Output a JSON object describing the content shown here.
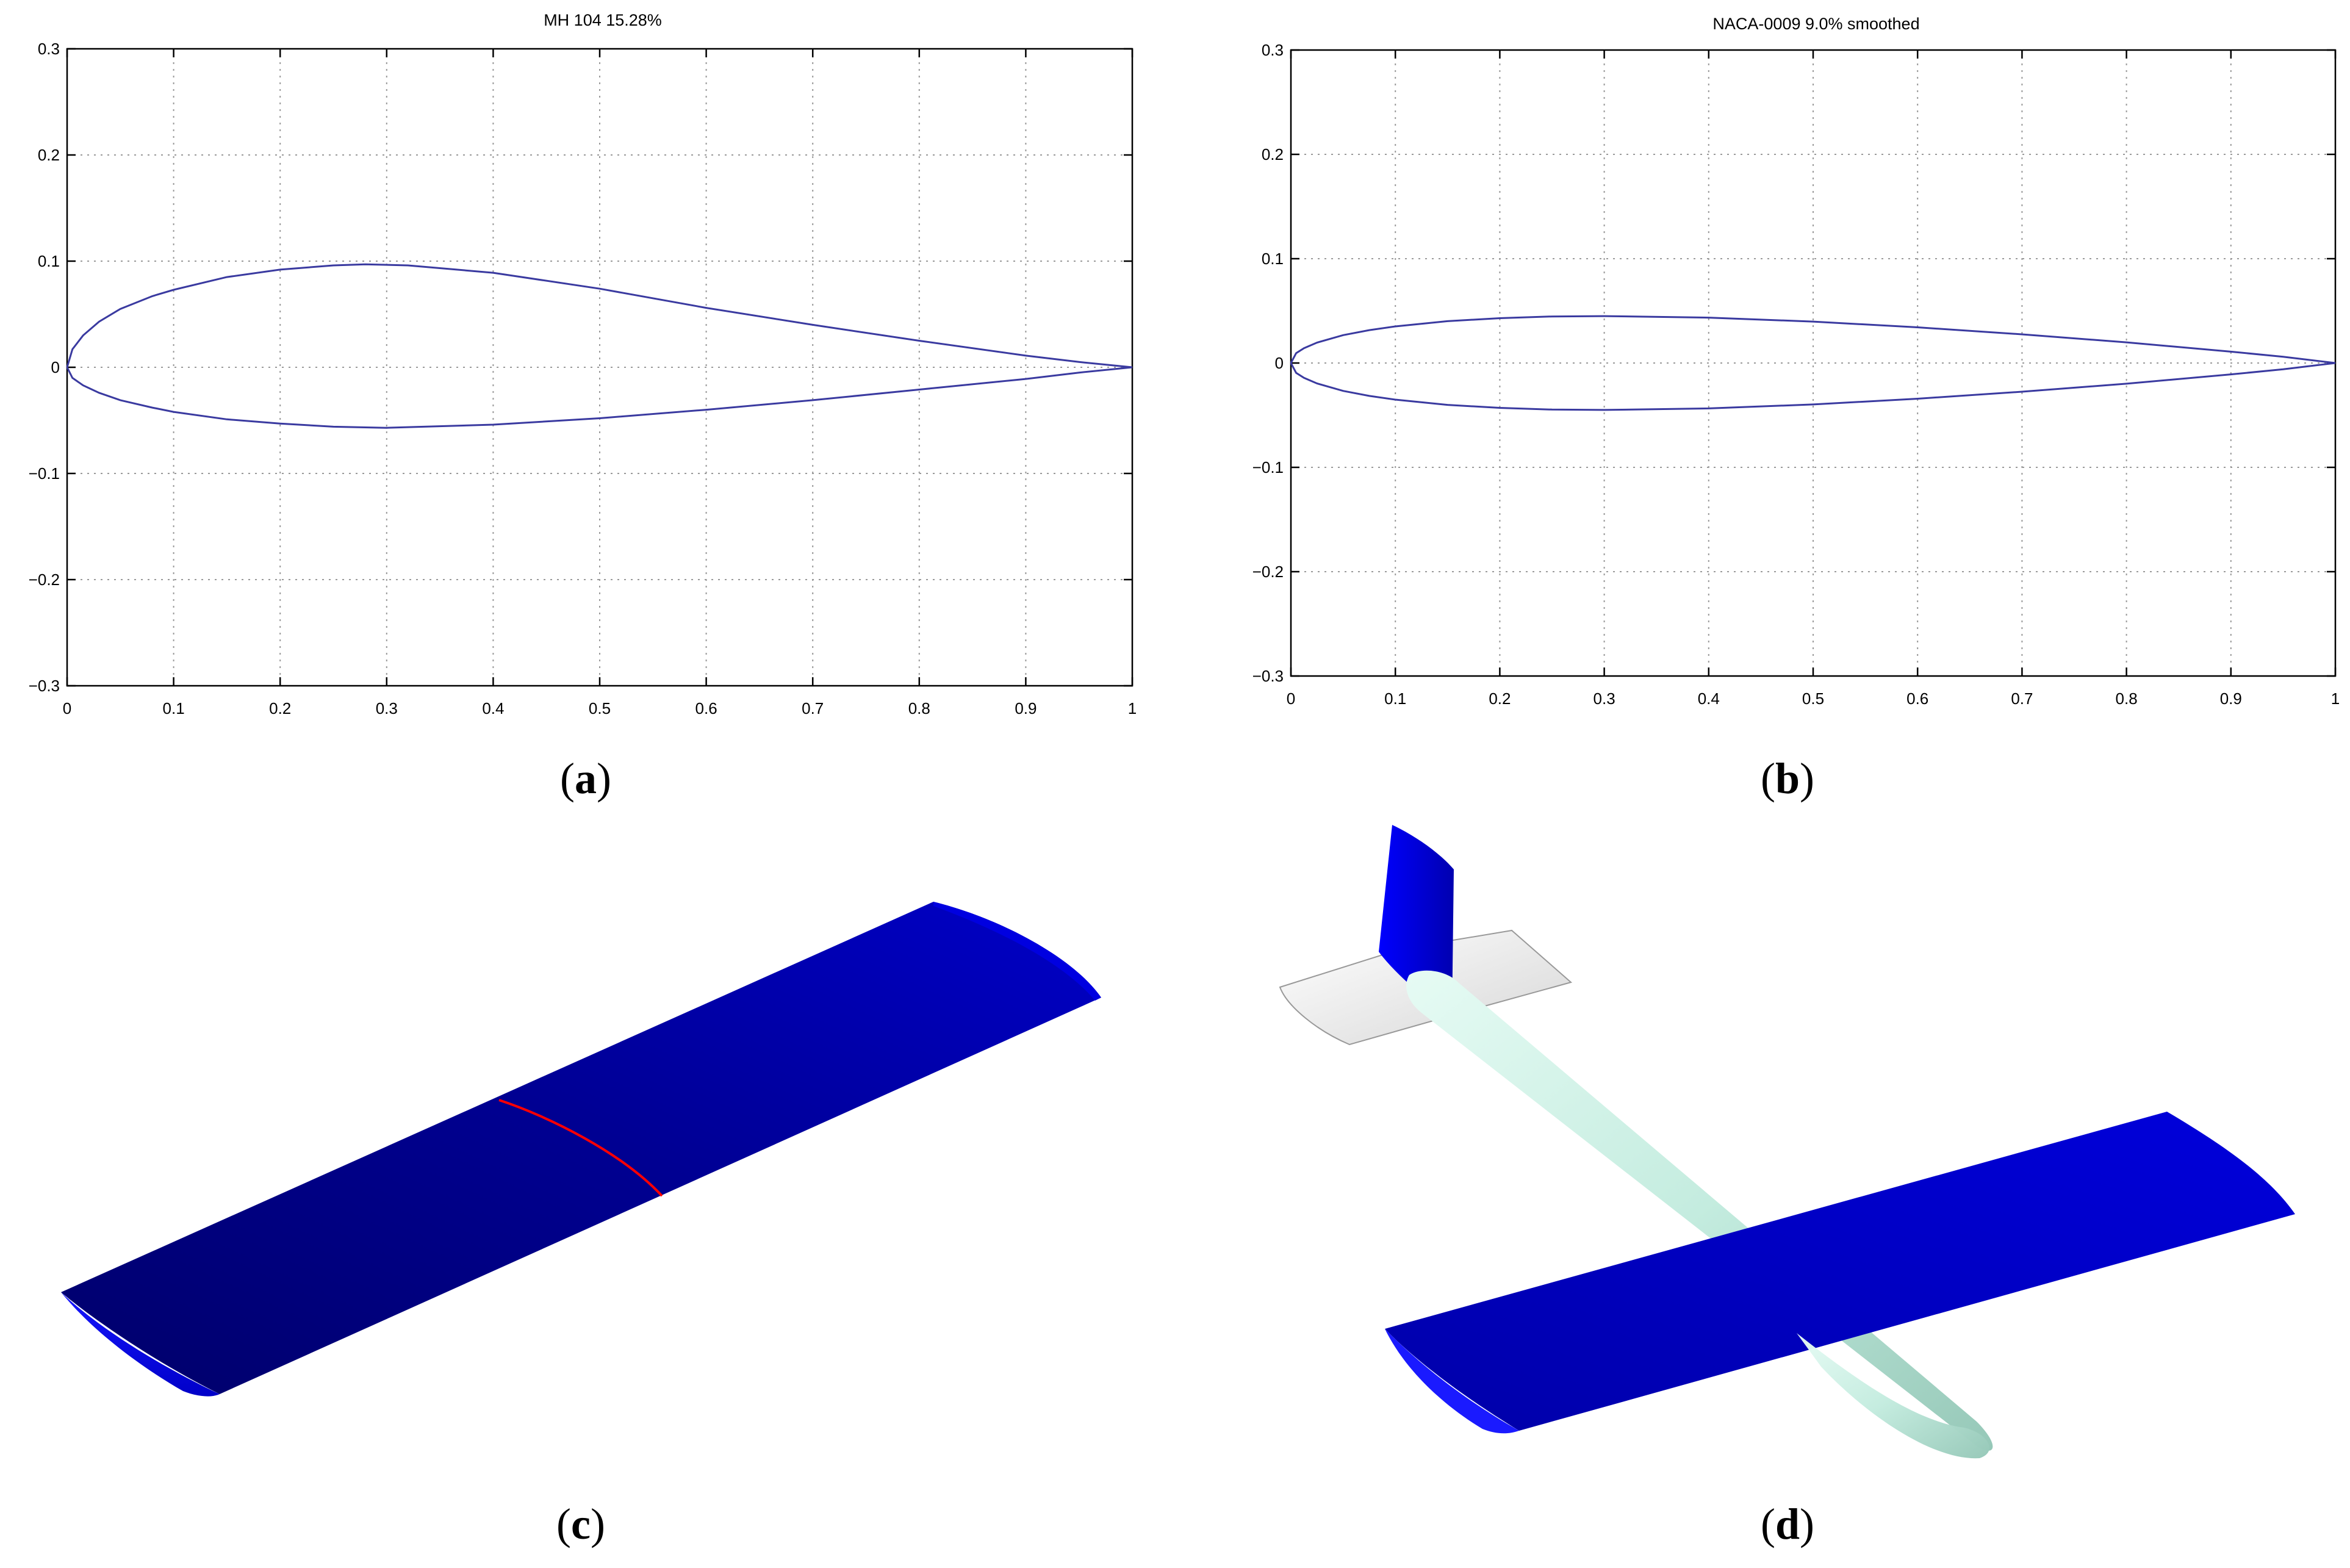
{
  "chart_data": [
    {
      "id": "a",
      "type": "line",
      "title": "MH 104  15.28%",
      "panel_label": "a",
      "xlim": [
        0,
        1
      ],
      "ylim": [
        -0.3,
        0.3
      ],
      "xticks": [
        "0",
        "0.1",
        "0.2",
        "0.3",
        "0.4",
        "0.5",
        "0.6",
        "0.7",
        "0.8",
        "0.9",
        "1"
      ],
      "yticks": [
        "0.3",
        "0.2",
        "0.1",
        "0",
        "−0.1",
        "−0.2",
        "−0.3"
      ],
      "grid": true,
      "line_color": "#3a3aa0",
      "upper": {
        "x": [
          0,
          0.005,
          0.015,
          0.03,
          0.05,
          0.08,
          0.1,
          0.15,
          0.2,
          0.25,
          0.28,
          0.32,
          0.4,
          0.5,
          0.6,
          0.7,
          0.8,
          0.9,
          0.95,
          1.0
        ],
        "y": [
          0,
          0.017,
          0.03,
          0.043,
          0.055,
          0.067,
          0.073,
          0.085,
          0.092,
          0.096,
          0.097,
          0.096,
          0.089,
          0.074,
          0.056,
          0.04,
          0.025,
          0.011,
          0.005,
          0
        ]
      },
      "lower": {
        "x": [
          0,
          0.005,
          0.015,
          0.03,
          0.05,
          0.08,
          0.1,
          0.15,
          0.2,
          0.25,
          0.3,
          0.4,
          0.5,
          0.6,
          0.7,
          0.8,
          0.9,
          0.95,
          1.0
        ],
        "y": [
          0,
          -0.01,
          -0.017,
          -0.024,
          -0.031,
          -0.038,
          -0.042,
          -0.049,
          -0.053,
          -0.056,
          -0.057,
          -0.054,
          -0.048,
          -0.04,
          -0.031,
          -0.021,
          -0.011,
          -0.005,
          0
        ]
      }
    },
    {
      "id": "b",
      "type": "line",
      "title": "NACA-0009 9.0% smoothed",
      "panel_label": "b",
      "xlim": [
        0,
        1
      ],
      "ylim": [
        -0.3,
        0.3
      ],
      "xticks": [
        "0",
        "0.1",
        "0.2",
        "0.3",
        "0.4",
        "0.5",
        "0.6",
        "0.7",
        "0.8",
        "0.9",
        "1"
      ],
      "yticks": [
        "0.3",
        "0.2",
        "0.1",
        "0",
        "−0.1",
        "−0.2",
        "−0.3"
      ],
      "grid": true,
      "line_color": "#3a3aa0",
      "upper": {
        "x": [
          0,
          0.005,
          0.0125,
          0.025,
          0.05,
          0.075,
          0.1,
          0.15,
          0.2,
          0.25,
          0.3,
          0.4,
          0.5,
          0.6,
          0.7,
          0.8,
          0.9,
          0.95,
          1.0
        ],
        "y": [
          0,
          0.0095,
          0.0142,
          0.0196,
          0.0267,
          0.0315,
          0.0351,
          0.0401,
          0.043,
          0.0446,
          0.045,
          0.0435,
          0.0397,
          0.0342,
          0.0275,
          0.0198,
          0.0109,
          0.006,
          0
        ]
      },
      "lower": {
        "x": [
          0,
          0.005,
          0.0125,
          0.025,
          0.05,
          0.075,
          0.1,
          0.15,
          0.2,
          0.25,
          0.3,
          0.4,
          0.5,
          0.6,
          0.7,
          0.8,
          0.9,
          0.95,
          1.0
        ],
        "y": [
          0,
          -0.0095,
          -0.0142,
          -0.0196,
          -0.0267,
          -0.0315,
          -0.0351,
          -0.0401,
          -0.043,
          -0.0446,
          -0.045,
          -0.0435,
          -0.0397,
          -0.0342,
          -0.0275,
          -0.0198,
          -0.0109,
          -0.006,
          0
        ]
      }
    }
  ],
  "renders": {
    "c": {
      "panel_label": "c",
      "wing_color": "#0000b4",
      "section_line_color": "#ff0000"
    },
    "d": {
      "panel_label": "d",
      "wing_color": "#0000b4",
      "fuselage_color": "#c8f0e4",
      "tailplane_color": "#f0f0f0"
    }
  }
}
